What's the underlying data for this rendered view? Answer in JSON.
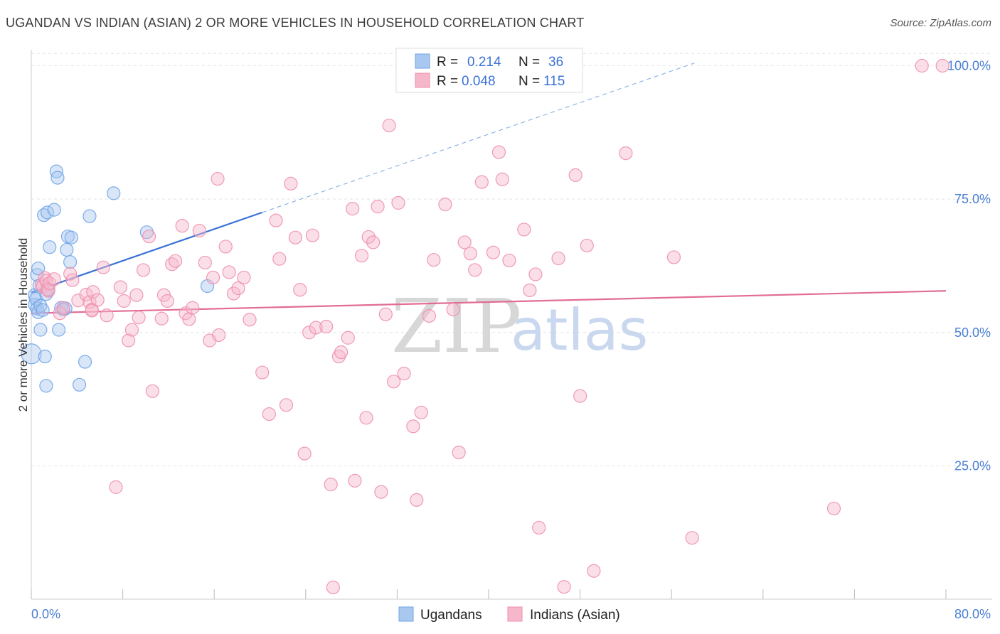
{
  "header": {
    "title": "UGANDAN VS INDIAN (ASIAN) 2 OR MORE VEHICLES IN HOUSEHOLD CORRELATION CHART",
    "source": "Source: ZipAtlas.com"
  },
  "watermark": {
    "zip": "ZIP",
    "atlas": "atlas"
  },
  "legend_stats": [
    {
      "r_label": "R =",
      "r_value": "0.214",
      "n_label": "N =",
      "n_value": "36",
      "color": "#a9c8f0"
    },
    {
      "r_label": "R =",
      "r_value": "0.048",
      "n_label": "N =",
      "n_value": "115",
      "color": "#f7b7cb"
    }
  ],
  "chart_data": {
    "type": "scatter",
    "title": "UGANDAN VS INDIAN (ASIAN) 2 OR MORE VEHICLES IN HOUSEHOLD CORRELATION CHART",
    "xlabel": "",
    "ylabel": "2 or more Vehicles in Household",
    "xlim": [
      0,
      80
    ],
    "ylim": [
      0,
      103
    ],
    "x_tick_labels": [
      "0.0%",
      "80.0%"
    ],
    "y_ticks": [
      25,
      50,
      75,
      100
    ],
    "y_tick_labels": [
      "25.0%",
      "50.0%",
      "75.0%",
      "100.0%"
    ],
    "grid": true,
    "legend_position": "bottom-center",
    "series": [
      {
        "name": "Ugandans",
        "color": "#6fa3e8",
        "fill": "#a9c8f0",
        "trend": {
          "x0": 0,
          "y0": 57.5,
          "x1": 20.2,
          "y1": 72.5,
          "dashed_to_x": 58,
          "dashed_to_y": 100.5,
          "color": "#3a72d8"
        },
        "points": [
          [
            0.0,
            46.0
          ],
          [
            0.3,
            57.0
          ],
          [
            0.3,
            55.2
          ],
          [
            0.4,
            56.3
          ],
          [
            0.5,
            60.8
          ],
          [
            0.5,
            54.5
          ],
          [
            0.6,
            53.8
          ],
          [
            0.6,
            62.0
          ],
          [
            0.7,
            58.8
          ],
          [
            0.8,
            55.0
          ],
          [
            0.8,
            50.5
          ],
          [
            1.0,
            54.2
          ],
          [
            1.1,
            72.0
          ],
          [
            1.2,
            45.5
          ],
          [
            1.3,
            40.0
          ],
          [
            1.3,
            57.2
          ],
          [
            1.4,
            72.5
          ],
          [
            1.5,
            58.0
          ],
          [
            1.6,
            66.0
          ],
          [
            2.0,
            73.0
          ],
          [
            2.2,
            80.2
          ],
          [
            2.3,
            79.0
          ],
          [
            2.4,
            50.5
          ],
          [
            2.6,
            54.6
          ],
          [
            2.8,
            54.3
          ],
          [
            3.1,
            65.5
          ],
          [
            3.2,
            68.0
          ],
          [
            3.4,
            63.2
          ],
          [
            3.5,
            67.8
          ],
          [
            4.2,
            40.2
          ],
          [
            4.7,
            44.5
          ],
          [
            5.1,
            71.8
          ],
          [
            7.2,
            76.1
          ],
          [
            10.1,
            68.8
          ],
          [
            15.4,
            58.7
          ],
          [
            3.0,
            54.5
          ]
        ]
      },
      {
        "name": "Indians (Asian)",
        "color": "#ee8fac",
        "fill": "#f7b7cb",
        "trend": {
          "x0": 0,
          "y0": 53.6,
          "x1": 80,
          "y1": 57.8,
          "color": "#e26c95"
        },
        "points": [
          [
            0.9,
            59.0
          ],
          [
            1.0,
            58.6
          ],
          [
            1.2,
            60.2
          ],
          [
            1.3,
            59.7
          ],
          [
            1.4,
            58.1
          ],
          [
            1.5,
            57.8
          ],
          [
            1.6,
            59.2
          ],
          [
            2.0,
            60.0
          ],
          [
            2.5,
            53.6
          ],
          [
            2.8,
            54.6
          ],
          [
            3.4,
            61.0
          ],
          [
            3.6,
            59.8
          ],
          [
            4.1,
            56.0
          ],
          [
            4.8,
            57.1
          ],
          [
            5.1,
            55.7
          ],
          [
            5.3,
            54.3
          ],
          [
            5.4,
            57.6
          ],
          [
            5.8,
            56.1
          ],
          [
            6.3,
            62.2
          ],
          [
            6.6,
            53.2
          ],
          [
            7.4,
            21.0
          ],
          [
            7.8,
            58.5
          ],
          [
            8.1,
            55.9
          ],
          [
            8.5,
            48.5
          ],
          [
            8.8,
            50.5
          ],
          [
            9.2,
            57.0
          ],
          [
            9.4,
            52.8
          ],
          [
            9.8,
            61.7
          ],
          [
            10.3,
            68.0
          ],
          [
            10.6,
            39.0
          ],
          [
            11.4,
            52.6
          ],
          [
            11.6,
            57.0
          ],
          [
            11.9,
            55.9
          ],
          [
            12.3,
            62.8
          ],
          [
            12.6,
            63.4
          ],
          [
            13.2,
            70.0
          ],
          [
            13.5,
            53.6
          ],
          [
            13.8,
            52.5
          ],
          [
            14.1,
            54.6
          ],
          [
            14.7,
            69.1
          ],
          [
            15.2,
            63.1
          ],
          [
            15.6,
            48.5
          ],
          [
            15.9,
            60.3
          ],
          [
            16.4,
            49.5
          ],
          [
            17.0,
            66.1
          ],
          [
            17.3,
            61.3
          ],
          [
            17.7,
            57.3
          ],
          [
            18.1,
            58.3
          ],
          [
            18.6,
            60.3
          ],
          [
            19.1,
            52.4
          ],
          [
            16.3,
            78.8
          ],
          [
            20.2,
            42.5
          ],
          [
            20.8,
            34.7
          ],
          [
            21.4,
            71.0
          ],
          [
            21.7,
            63.8
          ],
          [
            22.3,
            36.4
          ],
          [
            22.7,
            77.9
          ],
          [
            23.1,
            67.8
          ],
          [
            23.5,
            58.0
          ],
          [
            23.9,
            27.3
          ],
          [
            24.3,
            50.0
          ],
          [
            24.6,
            68.2
          ],
          [
            24.9,
            50.9
          ],
          [
            25.8,
            51.1
          ],
          [
            26.2,
            21.5
          ],
          [
            26.4,
            2.2
          ],
          [
            26.9,
            45.5
          ],
          [
            27.1,
            46.3
          ],
          [
            27.7,
            49.0
          ],
          [
            28.1,
            73.2
          ],
          [
            28.3,
            22.2
          ],
          [
            28.9,
            64.4
          ],
          [
            29.3,
            34.0
          ],
          [
            29.5,
            67.9
          ],
          [
            29.9,
            66.9
          ],
          [
            30.3,
            73.6
          ],
          [
            30.6,
            20.1
          ],
          [
            31.0,
            53.4
          ],
          [
            31.3,
            88.8
          ],
          [
            31.7,
            40.8
          ],
          [
            32.1,
            74.3
          ],
          [
            32.6,
            42.3
          ],
          [
            33.4,
            32.4
          ],
          [
            33.7,
            18.6
          ],
          [
            34.8,
            53.1
          ],
          [
            35.2,
            63.6
          ],
          [
            36.2,
            74.0
          ],
          [
            36.9,
            54.3
          ],
          [
            37.4,
            27.5
          ],
          [
            37.9,
            66.9
          ],
          [
            38.4,
            64.8
          ],
          [
            38.8,
            61.7
          ],
          [
            39.4,
            78.2
          ],
          [
            40.4,
            65.0
          ],
          [
            40.9,
            83.8
          ],
          [
            41.2,
            78.7
          ],
          [
            41.8,
            63.5
          ],
          [
            43.1,
            69.3
          ],
          [
            43.6,
            57.9
          ],
          [
            44.1,
            60.9
          ],
          [
            44.4,
            13.4
          ],
          [
            46.1,
            63.9
          ],
          [
            46.6,
            2.3
          ],
          [
            47.6,
            79.5
          ],
          [
            48.0,
            38.1
          ],
          [
            48.6,
            66.3
          ],
          [
            49.2,
            5.3
          ],
          [
            52.0,
            83.6
          ],
          [
            56.2,
            64.1
          ],
          [
            57.8,
            11.5
          ],
          [
            70.2,
            17.0
          ],
          [
            77.9,
            100.0
          ],
          [
            79.7,
            100.0
          ],
          [
            34.1,
            35.0
          ],
          [
            5.3,
            54.1
          ]
        ]
      }
    ]
  },
  "legend": [
    {
      "label": "Ugandans",
      "fill": "#a9c8f0",
      "stroke": "#6fa3e8"
    },
    {
      "label": "Indians (Asian)",
      "fill": "#f7b7cb",
      "stroke": "#ee8fac"
    }
  ]
}
